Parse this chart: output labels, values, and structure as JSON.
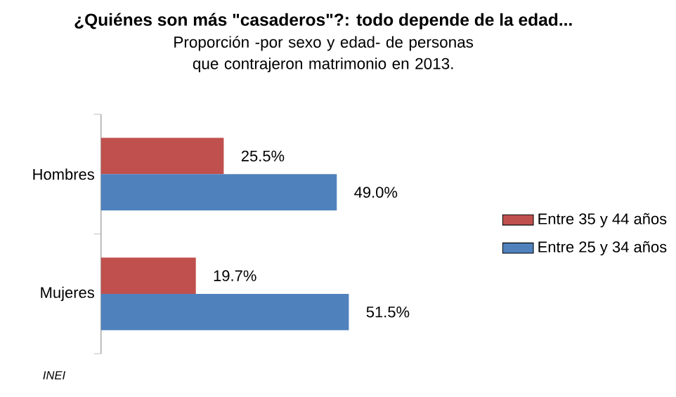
{
  "chart_data": {
    "type": "bar",
    "orientation": "horizontal",
    "title": "¿Quiénes son más \"casaderos\"?: todo depende de la edad...",
    "subtitle": "Proporción -por sexo y edad- de personas que contrajeron matrimonio en 2013.",
    "categories": [
      "Hombres",
      "Mujeres"
    ],
    "series": [
      {
        "name": "Entre 35 y 44 años",
        "color": "#c0504d",
        "values": [
          25.5,
          19.7
        ],
        "value_labels": [
          "25.5%",
          "19.7%"
        ]
      },
      {
        "name": "Entre 25 y 34 años",
        "color": "#4f81bd",
        "values": [
          49.0,
          51.5
        ],
        "value_labels": [
          "49.0%",
          "51.5%"
        ]
      }
    ],
    "legend": "right",
    "annotations": [
      "INEI"
    ]
  }
}
